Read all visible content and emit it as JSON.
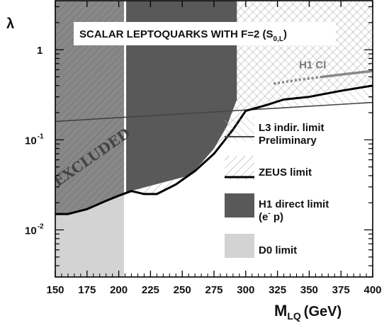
{
  "chart_data": {
    "type": "area",
    "title": "SCALAR LEPTOQUARKS WITH F=2 (S",
    "title_subscript": "0,L",
    "title_close": ")",
    "ylabel": "λ",
    "xlabel_main": "M",
    "xlabel_sub": "LQ",
    "xlabel_unit": "(GeV)",
    "xlim": [
      150,
      400
    ],
    "ylim": [
      0.003,
      3.5
    ],
    "yscale": "log",
    "x_ticks": [
      "150",
      "175",
      "200",
      "225",
      "250",
      "275",
      "300",
      "325",
      "350",
      "375",
      "400"
    ],
    "y_ticks": [
      {
        "value": 1,
        "base": "1",
        "exp": ""
      },
      {
        "value": 0.1,
        "base": "10",
        "exp": "-1"
      },
      {
        "value": 0.01,
        "base": "10",
        "exp": "-2"
      }
    ],
    "excluded_label": "EXCLUDED",
    "h1_ci_label": "H1 CI",
    "series": [
      {
        "name": "L3 indir. limit Preliminary",
        "style": "thin-line",
        "color": "#444444",
        "x": [
          150,
          400
        ],
        "y": [
          0.16,
          0.26
        ]
      },
      {
        "name": "ZEUS limit",
        "style": "thick-line",
        "color": "#000000",
        "x": [
          150,
          160,
          175,
          190,
          200,
          210,
          220,
          230,
          245,
          260,
          275,
          290,
          300,
          315,
          330,
          350,
          375,
          400
        ],
        "y": [
          0.015,
          0.015,
          0.017,
          0.021,
          0.024,
          0.027,
          0.025,
          0.025,
          0.032,
          0.045,
          0.07,
          0.13,
          0.21,
          0.24,
          0.28,
          0.3,
          0.35,
          0.4
        ]
      },
      {
        "name": "H1 direct limit (e- p)",
        "style": "dark-fill",
        "color": "#595959",
        "x": [
          205,
          255,
          265,
          275,
          285,
          293,
          293
        ],
        "y": [
          0.026,
          0.04,
          0.055,
          0.08,
          0.14,
          0.28,
          3.5
        ]
      },
      {
        "name": "D0 limit",
        "style": "light-fill",
        "color": "#d0d0d0",
        "x": [
          150,
          205
        ],
        "y": [
          0.003,
          3.5
        ]
      },
      {
        "name": "H1 CI",
        "style": "gray-line",
        "color": "#888888",
        "x": [
          322,
          340,
          360,
          380,
          400
        ],
        "y": [
          0.42,
          0.46,
          0.5,
          0.54,
          0.58
        ]
      }
    ],
    "legend": {
      "placement": "right-center",
      "entries": [
        {
          "swatch": "hatch",
          "line1": "L3 indir. limit",
          "line2": "Preliminary"
        },
        {
          "swatch": "hatch",
          "line1": "ZEUS limit",
          "line2": ""
        },
        {
          "swatch": "dark",
          "line1": "H1 direct limit",
          "line2": "(e",
          "line2_sup": "-",
          "line2_end": " p)"
        },
        {
          "swatch": "light",
          "line1": "D0 limit",
          "line2": ""
        }
      ]
    }
  }
}
